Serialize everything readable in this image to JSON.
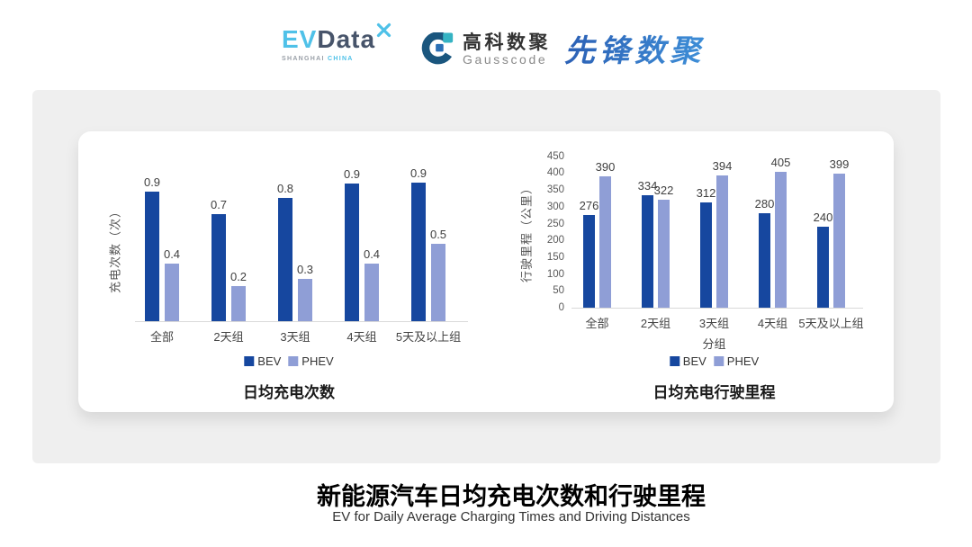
{
  "header": {
    "evdata": {
      "ev": "EV",
      "data": "Data",
      "sub_left": "SHANGHAI",
      "sub_right": "CHINA"
    },
    "gausscode": {
      "cn": "高科数聚",
      "en": "Gausscode"
    },
    "xianfeng": {
      "text": "先锋数聚"
    }
  },
  "colors": {
    "bev": "#16479F",
    "phev": "#8F9ED6",
    "panel": "#efefef",
    "logo_lightblue": "#4FC1E8",
    "logo_dark": "#47546A",
    "gauss_navy": "#1A567E",
    "gauss_teal": "#35B3C3",
    "gauss_blue": "#2A6FB5",
    "xianfeng_blue": "#2F6FC3"
  },
  "footer": {
    "title": "新能源汽车日均充电次数和行驶里程",
    "subtitle": "EV for Daily Average Charging Times and Driving Distances"
  },
  "chart_data": [
    {
      "type": "bar",
      "title": "日均充电次数",
      "ylabel": "充电次数（次）",
      "xlabel": "",
      "categories": [
        "全部",
        "2天组",
        "3天组",
        "4天组",
        "5天及以上组"
      ],
      "series": [
        {
          "name": "BEV",
          "values": [
            0.9,
            0.7,
            0.8,
            0.9,
            0.9
          ],
          "est_values": [
            0.85,
            0.7,
            0.81,
            0.9,
            0.91
          ]
        },
        {
          "name": "PHEV",
          "values": [
            0.4,
            0.2,
            0.3,
            0.4,
            0.5
          ],
          "est_values": [
            0.38,
            0.23,
            0.28,
            0.38,
            0.51
          ]
        }
      ],
      "ylim": [
        0,
        1.12
      ],
      "yticks": null,
      "legend": [
        "BEV",
        "PHEV"
      ],
      "grid": false,
      "legend_position": "bottom"
    },
    {
      "type": "bar",
      "title": "日均充电行驶里程",
      "ylabel": "行驶里程（公里）",
      "xlabel": "分组",
      "categories": [
        "全部",
        "2天组",
        "3天组",
        "4天组",
        "5天及以上组"
      ],
      "series": [
        {
          "name": "BEV",
          "values": [
            276,
            334,
            312,
            280,
            240
          ]
        },
        {
          "name": "PHEV",
          "values": [
            390,
            322,
            394,
            405,
            399
          ]
        }
      ],
      "ylim": [
        0,
        450
      ],
      "yticks": [
        0,
        50,
        100,
        150,
        200,
        250,
        300,
        350,
        400,
        450
      ],
      "legend": [
        "BEV",
        "PHEV"
      ],
      "grid": false,
      "legend_position": "bottom"
    }
  ]
}
